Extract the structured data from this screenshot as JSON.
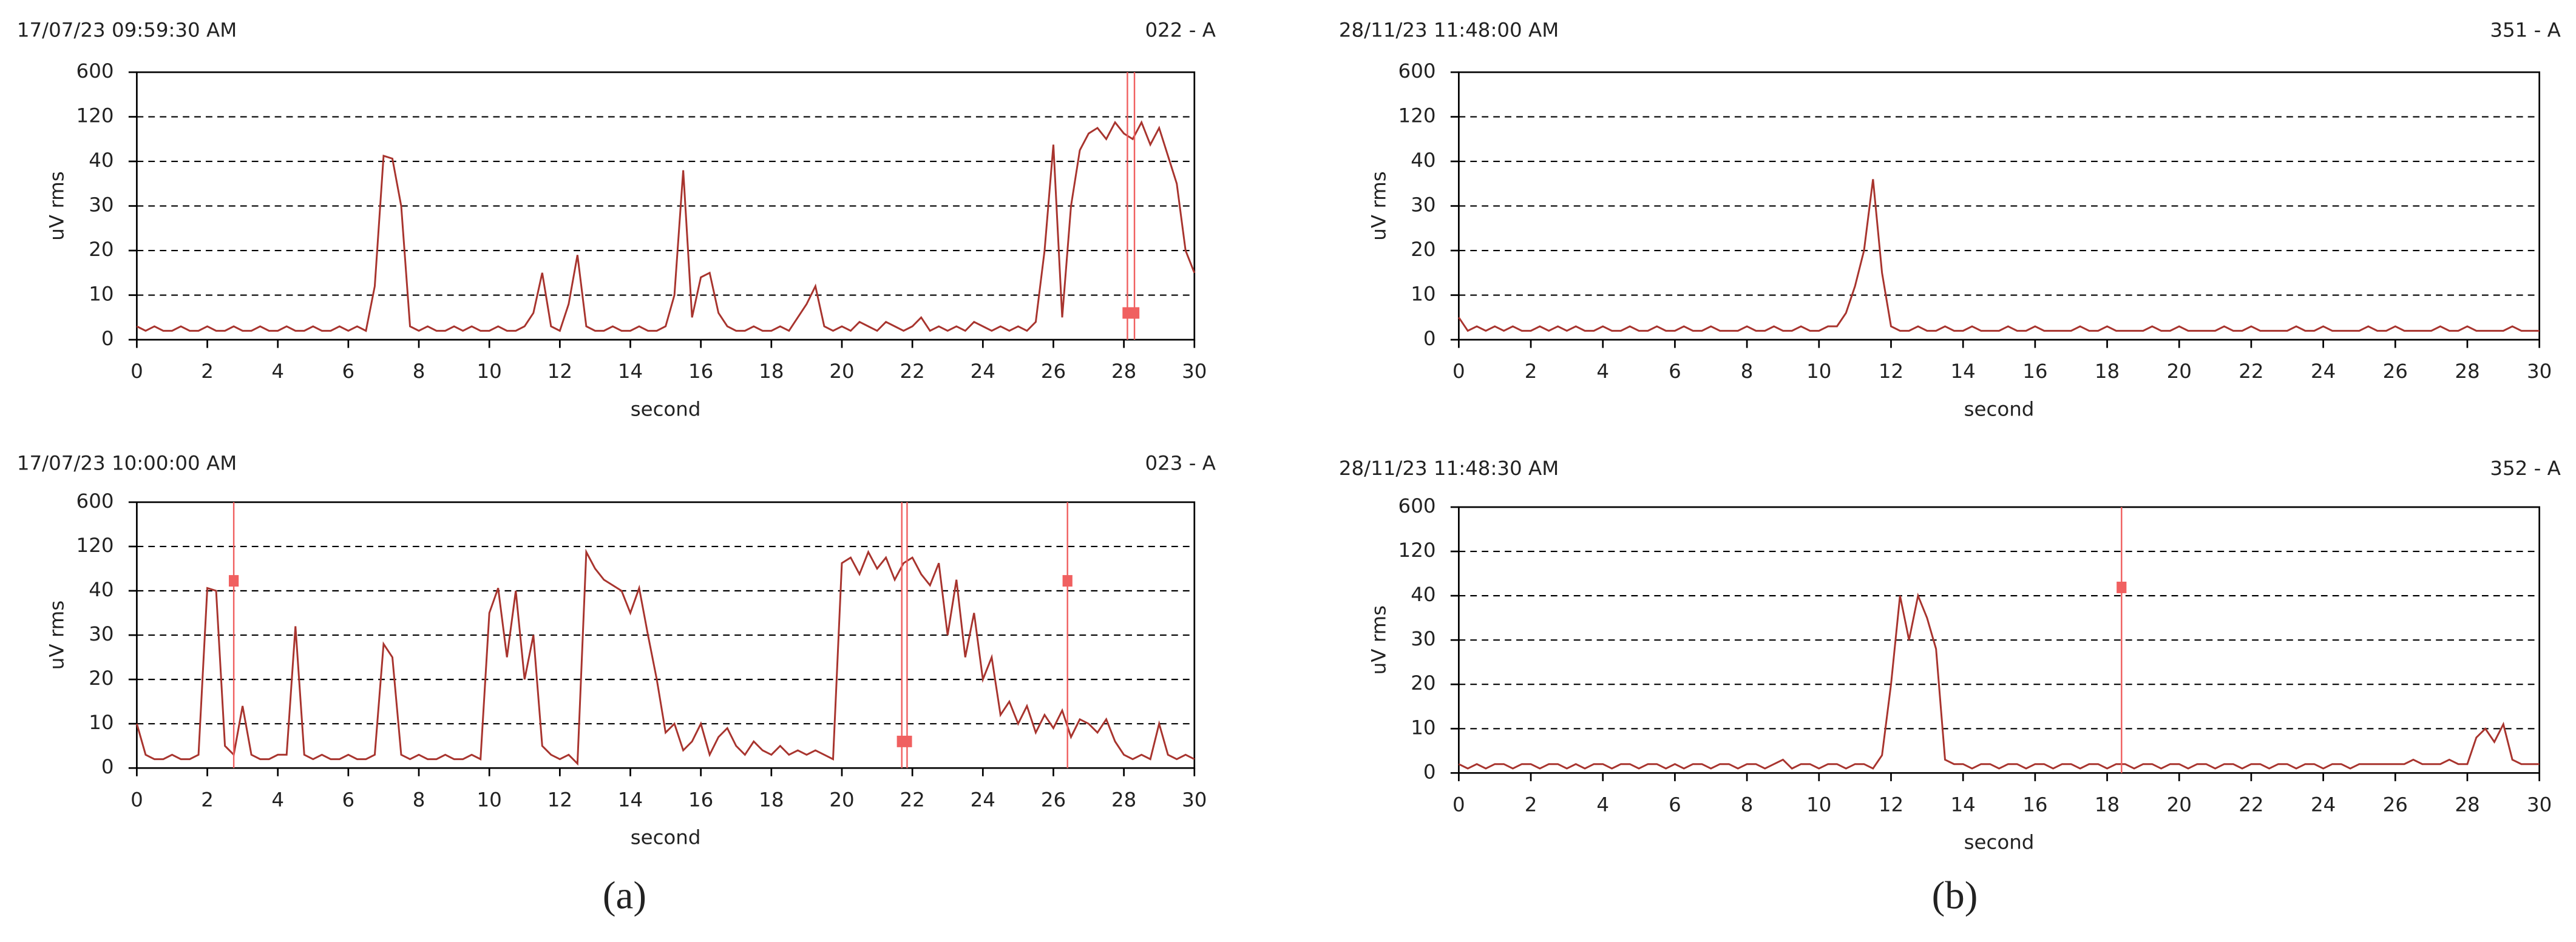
{
  "chart_data": [
    {
      "type": "line",
      "title": "17/07/23 09:59:30 AM",
      "subtitle": "022 - A",
      "ylabel": "uV rms",
      "xlabel": "second",
      "x": [
        0,
        0.25,
        0.5,
        0.75,
        1,
        1.25,
        1.5,
        1.75,
        2,
        2.25,
        2.5,
        2.75,
        3,
        3.25,
        3.5,
        3.75,
        4,
        4.25,
        4.5,
        4.75,
        5,
        5.25,
        5.5,
        5.75,
        6,
        6.25,
        6.5,
        6.75,
        7,
        7.25,
        7.5,
        7.75,
        8,
        8.25,
        8.5,
        8.75,
        9,
        9.25,
        9.5,
        9.75,
        10,
        10.25,
        10.5,
        10.75,
        11,
        11.25,
        11.5,
        11.75,
        12,
        12.25,
        12.5,
        12.75,
        13,
        13.25,
        13.5,
        13.75,
        14,
        14.25,
        14.5,
        14.75,
        15,
        15.25,
        15.5,
        15.75,
        16,
        16.25,
        16.5,
        16.75,
        17,
        17.25,
        17.5,
        17.75,
        18,
        18.25,
        18.5,
        18.75,
        19,
        19.25,
        19.5,
        19.75,
        20,
        20.25,
        20.5,
        20.75,
        21,
        21.25,
        21.5,
        21.75,
        22,
        22.25,
        22.5,
        22.75,
        23,
        23.25,
        23.5,
        23.75,
        24,
        24.25,
        24.5,
        24.75,
        25,
        25.25,
        25.5,
        25.75,
        26,
        26.25,
        26.5,
        26.75,
        27,
        27.25,
        27.5,
        27.75,
        28,
        28.25,
        28.5,
        28.75,
        29,
        29.25,
        29.5,
        29.75,
        30
      ],
      "values": [
        3,
        2,
        3,
        2,
        2,
        3,
        2,
        2,
        3,
        2,
        2,
        3,
        2,
        2,
        3,
        2,
        2,
        3,
        2,
        2,
        3,
        2,
        2,
        3,
        2,
        3,
        2,
        12,
        50,
        45,
        30,
        3,
        2,
        3,
        2,
        2,
        3,
        2,
        3,
        2,
        2,
        3,
        2,
        2,
        3,
        6,
        15,
        3,
        2,
        8,
        19,
        3,
        2,
        2,
        3,
        2,
        2,
        3,
        2,
        2,
        3,
        10,
        38,
        5,
        14,
        15,
        6,
        3,
        2,
        2,
        3,
        2,
        2,
        3,
        2,
        5,
        8,
        12,
        3,
        2,
        3,
        2,
        4,
        3,
        2,
        4,
        3,
        2,
        3,
        5,
        2,
        3,
        2,
        3,
        2,
        4,
        3,
        2,
        3,
        2,
        3,
        2,
        4,
        20,
        70,
        5,
        30,
        60,
        90,
        100,
        80,
        110,
        90,
        80,
        110,
        70,
        100,
        50,
        35,
        20,
        15
      ],
      "color": "#a8342e",
      "xlim": [
        0,
        30
      ],
      "xticks": [
        0,
        2,
        4,
        6,
        8,
        10,
        12,
        14,
        16,
        18,
        20,
        22,
        24,
        26,
        28,
        30
      ],
      "ylim": [
        0,
        600
      ],
      "yticks": [
        0,
        10,
        20,
        30,
        40,
        120,
        600
      ],
      "y_scale": "piecewise",
      "grid": true,
      "cursors": [
        {
          "x": [
            28.1,
            28.3
          ],
          "y": 6
        }
      ],
      "cursor_color": "#f06060"
    },
    {
      "type": "line",
      "title": "17/07/23 10:00:00 AM",
      "subtitle": "023 - A",
      "ylabel": "uV rms",
      "xlabel": "second",
      "x": [
        0,
        0.25,
        0.5,
        0.75,
        1,
        1.25,
        1.5,
        1.75,
        2,
        2.25,
        2.5,
        2.75,
        3,
        3.25,
        3.5,
        3.75,
        4,
        4.25,
        4.5,
        4.75,
        5,
        5.25,
        5.5,
        5.75,
        6,
        6.25,
        6.5,
        6.75,
        7,
        7.25,
        7.5,
        7.75,
        8,
        8.25,
        8.5,
        8.75,
        9,
        9.25,
        9.5,
        9.75,
        10,
        10.25,
        10.5,
        10.75,
        11,
        11.25,
        11.5,
        11.75,
        12,
        12.25,
        12.5,
        12.75,
        13,
        13.25,
        13.5,
        13.75,
        14,
        14.25,
        14.5,
        14.75,
        15,
        15.25,
        15.5,
        15.75,
        16,
        16.25,
        16.5,
        16.75,
        17,
        17.25,
        17.5,
        17.75,
        18,
        18.25,
        18.5,
        18.75,
        19,
        19.25,
        19.5,
        19.75,
        20,
        20.25,
        20.5,
        20.75,
        21,
        21.25,
        21.5,
        21.75,
        22,
        22.25,
        22.5,
        22.75,
        23,
        23.25,
        23.5,
        23.75,
        24,
        24.25,
        24.5,
        24.75,
        25,
        25.25,
        25.5,
        25.75,
        26,
        26.25,
        26.5,
        26.75,
        27,
        27.25,
        27.5,
        27.75,
        28,
        28.25,
        28.5,
        28.75,
        29,
        29.25,
        29.5,
        29.75,
        30
      ],
      "values": [
        10,
        3,
        2,
        2,
        3,
        2,
        2,
        3,
        45,
        40,
        5,
        3,
        14,
        3,
        2,
        2,
        3,
        3,
        32,
        3,
        2,
        3,
        2,
        2,
        3,
        2,
        2,
        3,
        28,
        25,
        3,
        2,
        3,
        2,
        2,
        3,
        2,
        2,
        3,
        2,
        35,
        45,
        25,
        40,
        20,
        30,
        5,
        3,
        2,
        3,
        1,
        110,
        80,
        60,
        50,
        40,
        35,
        45,
        30,
        20,
        8,
        10,
        4,
        6,
        10,
        3,
        7,
        9,
        5,
        3,
        6,
        4,
        3,
        5,
        3,
        4,
        3,
        4,
        3,
        2,
        90,
        100,
        70,
        110,
        80,
        100,
        60,
        90,
        100,
        70,
        50,
        90,
        30,
        60,
        25,
        35,
        20,
        25,
        12,
        15,
        10,
        14,
        8,
        12,
        9,
        13,
        7,
        11,
        10,
        8,
        11,
        6,
        3,
        2,
        3,
        2,
        10,
        3,
        2,
        3,
        2
      ],
      "color": "#a8342e",
      "xlim": [
        0,
        30
      ],
      "xticks": [
        0,
        2,
        4,
        6,
        8,
        10,
        12,
        14,
        16,
        18,
        20,
        22,
        24,
        26,
        28,
        30
      ],
      "ylim": [
        0,
        600
      ],
      "yticks": [
        0,
        10,
        20,
        30,
        40,
        120,
        600
      ],
      "y_scale": "piecewise",
      "grid": true,
      "cursors": [
        {
          "x": [
            2.75
          ],
          "y": 58
        },
        {
          "x": [
            21.7,
            21.85
          ],
          "y": 6
        },
        {
          "x": [
            26.4
          ],
          "y": 58
        }
      ],
      "cursor_color": "#f06060"
    },
    {
      "type": "line",
      "title": "28/11/23 11:48:00 AM",
      "subtitle": "351 - A",
      "ylabel": "uV rms",
      "xlabel": "second",
      "x": [
        0,
        0.25,
        0.5,
        0.75,
        1,
        1.25,
        1.5,
        1.75,
        2,
        2.25,
        2.5,
        2.75,
        3,
        3.25,
        3.5,
        3.75,
        4,
        4.25,
        4.5,
        4.75,
        5,
        5.25,
        5.5,
        5.75,
        6,
        6.25,
        6.5,
        6.75,
        7,
        7.25,
        7.5,
        7.75,
        8,
        8.25,
        8.5,
        8.75,
        9,
        9.25,
        9.5,
        9.75,
        10,
        10.25,
        10.5,
        10.75,
        11,
        11.25,
        11.5,
        11.75,
        12,
        12.25,
        12.5,
        12.75,
        13,
        13.25,
        13.5,
        13.75,
        14,
        14.25,
        14.5,
        14.75,
        15,
        15.25,
        15.5,
        15.75,
        16,
        16.25,
        16.5,
        16.75,
        17,
        17.25,
        17.5,
        17.75,
        18,
        18.25,
        18.5,
        18.75,
        19,
        19.25,
        19.5,
        19.75,
        20,
        20.25,
        20.5,
        20.75,
        21,
        21.25,
        21.5,
        21.75,
        22,
        22.25,
        22.5,
        22.75,
        23,
        23.25,
        23.5,
        23.75,
        24,
        24.25,
        24.5,
        24.75,
        25,
        25.25,
        25.5,
        25.75,
        26,
        26.25,
        26.5,
        26.75,
        27,
        27.25,
        27.5,
        27.75,
        28,
        28.25,
        28.5,
        28.75,
        29,
        29.25,
        29.5,
        29.75,
        30
      ],
      "values": [
        5,
        2,
        3,
        2,
        3,
        2,
        3,
        2,
        2,
        3,
        2,
        3,
        2,
        3,
        2,
        2,
        3,
        2,
        2,
        3,
        2,
        2,
        3,
        2,
        2,
        3,
        2,
        2,
        3,
        2,
        2,
        2,
        3,
        2,
        2,
        3,
        2,
        2,
        3,
        2,
        2,
        3,
        3,
        6,
        12,
        20,
        36,
        15,
        3,
        2,
        2,
        3,
        2,
        2,
        3,
        2,
        2,
        3,
        2,
        2,
        2,
        3,
        2,
        2,
        3,
        2,
        2,
        2,
        2,
        3,
        2,
        2,
        3,
        2,
        2,
        2,
        2,
        3,
        2,
        2,
        3,
        2,
        2,
        2,
        2,
        3,
        2,
        2,
        3,
        2,
        2,
        2,
        2,
        3,
        2,
        2,
        3,
        2,
        2,
        2,
        2,
        3,
        2,
        2,
        3,
        2,
        2,
        2,
        2,
        3,
        2,
        2,
        3,
        2,
        2,
        2,
        2,
        3,
        2,
        2,
        2
      ],
      "color": "#a8342e",
      "xlim": [
        0,
        30
      ],
      "xticks": [
        0,
        2,
        4,
        6,
        8,
        10,
        12,
        14,
        16,
        18,
        20,
        22,
        24,
        26,
        28,
        30
      ],
      "ylim": [
        0,
        600
      ],
      "yticks": [
        0,
        10,
        20,
        30,
        40,
        120,
        600
      ],
      "y_scale": "piecewise",
      "grid": true,
      "cursors": [],
      "cursor_color": "#f06060"
    },
    {
      "type": "line",
      "title": "28/11/23 11:48:30 AM",
      "subtitle": "352 - A",
      "ylabel": "uV rms",
      "xlabel": "second",
      "x": [
        0,
        0.25,
        0.5,
        0.75,
        1,
        1.25,
        1.5,
        1.75,
        2,
        2.25,
        2.5,
        2.75,
        3,
        3.25,
        3.5,
        3.75,
        4,
        4.25,
        4.5,
        4.75,
        5,
        5.25,
        5.5,
        5.75,
        6,
        6.25,
        6.5,
        6.75,
        7,
        7.25,
        7.5,
        7.75,
        8,
        8.25,
        8.5,
        8.75,
        9,
        9.25,
        9.5,
        9.75,
        10,
        10.25,
        10.5,
        10.75,
        11,
        11.25,
        11.5,
        11.75,
        12,
        12.25,
        12.5,
        12.75,
        13,
        13.25,
        13.5,
        13.75,
        14,
        14.25,
        14.5,
        14.75,
        15,
        15.25,
        15.5,
        15.75,
        16,
        16.25,
        16.5,
        16.75,
        17,
        17.25,
        17.5,
        17.75,
        18,
        18.25,
        18.5,
        18.75,
        19,
        19.25,
        19.5,
        19.75,
        20,
        20.25,
        20.5,
        20.75,
        21,
        21.25,
        21.5,
        21.75,
        22,
        22.25,
        22.5,
        22.75,
        23,
        23.25,
        23.5,
        23.75,
        24,
        24.25,
        24.5,
        24.75,
        25,
        25.25,
        25.5,
        25.75,
        26,
        26.25,
        26.5,
        26.75,
        27,
        27.25,
        27.5,
        27.75,
        28,
        28.25,
        28.5,
        28.75,
        29,
        29.25,
        29.5,
        29.75,
        30
      ],
      "values": [
        2,
        1,
        2,
        1,
        2,
        2,
        1,
        2,
        2,
        1,
        2,
        2,
        1,
        2,
        1,
        2,
        2,
        1,
        2,
        2,
        1,
        2,
        2,
        1,
        2,
        1,
        2,
        2,
        1,
        2,
        2,
        1,
        2,
        2,
        1,
        2,
        3,
        1,
        2,
        2,
        1,
        2,
        2,
        1,
        2,
        2,
        1,
        4,
        20,
        40,
        30,
        40,
        35,
        28,
        3,
        2,
        2,
        1,
        2,
        2,
        1,
        2,
        2,
        1,
        2,
        2,
        1,
        2,
        2,
        1,
        2,
        2,
        1,
        2,
        2,
        1,
        2,
        2,
        1,
        2,
        2,
        1,
        2,
        2,
        1,
        2,
        2,
        1,
        2,
        2,
        1,
        2,
        2,
        1,
        2,
        2,
        1,
        2,
        2,
        1,
        2,
        2,
        2,
        2,
        2,
        2,
        3,
        2,
        2,
        2,
        3,
        2,
        2,
        8,
        10,
        7,
        11,
        3,
        2,
        2,
        2
      ],
      "color": "#a8342e",
      "xlim": [
        0,
        30
      ],
      "xticks": [
        0,
        2,
        4,
        6,
        8,
        10,
        12,
        14,
        16,
        18,
        20,
        22,
        24,
        26,
        28,
        30
      ],
      "ylim": [
        0,
        600
      ],
      "yticks": [
        0,
        10,
        20,
        30,
        40,
        120,
        600
      ],
      "y_scale": "piecewise",
      "grid": true,
      "cursors": [
        {
          "x": [
            18.4
          ],
          "y": 55
        }
      ],
      "cursor_color": "#f06060"
    }
  ],
  "captions": [
    "(a)",
    "(b)"
  ]
}
